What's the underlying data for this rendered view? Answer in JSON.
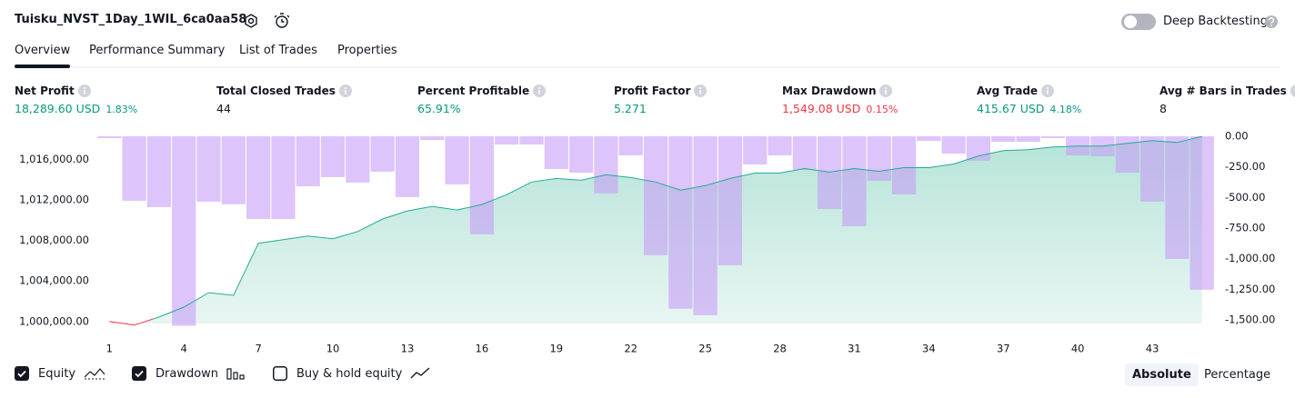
{
  "header": {
    "title": "Tuisku_NVST_1Day_1WIL_6ca0aa58",
    "toggle_label": "Deep Backtesting",
    "toggle_on": false
  },
  "tabs": {
    "items": [
      "Overview",
      "Performance Summary",
      "List of Trades",
      "Properties"
    ],
    "active": 0
  },
  "metrics": [
    {
      "label": "Net Profit",
      "value": "18,289.60 USD",
      "percent": "1.83%",
      "color": "#089981"
    },
    {
      "label": "Total Closed Trades",
      "value": "44",
      "color": "#131722"
    },
    {
      "label": "Percent Profitable",
      "value": "65.91%",
      "color": "#089981"
    },
    {
      "label": "Profit Factor",
      "value": "5.271",
      "color": "#089981"
    },
    {
      "label": "Max Drawdown",
      "value": "1,549.08 USD",
      "percent": "0.15%",
      "color": "#f23645"
    },
    {
      "label": "Avg Trade",
      "value": "415.67 USD",
      "percent": "4.18%",
      "color": "#089981"
    },
    {
      "label": "Avg # Bars in Trades",
      "value": "8",
      "color": "#131722"
    }
  ],
  "chart_data": {
    "type": "combo",
    "x": [
      1,
      2,
      3,
      4,
      5,
      6,
      7,
      8,
      9,
      10,
      11,
      12,
      13,
      14,
      15,
      16,
      17,
      18,
      19,
      20,
      21,
      22,
      23,
      24,
      25,
      26,
      27,
      28,
      29,
      30,
      31,
      32,
      33,
      34,
      35,
      36,
      37,
      38,
      39,
      40,
      41,
      42,
      43,
      44,
      45
    ],
    "xlim": [
      0.55,
      45.45
    ],
    "xticks": [
      1,
      4,
      7,
      10,
      13,
      16,
      19,
      22,
      25,
      28,
      31,
      34,
      37,
      40,
      43
    ],
    "ylim": [
      999800,
      1018300
    ],
    "yticks": [
      {
        "value": 1000000,
        "label": "1,000,000.00"
      },
      {
        "value": 1004000,
        "label": "1,004,000.00"
      },
      {
        "value": 1008000,
        "label": "1,008,000.00"
      },
      {
        "value": 1012000,
        "label": "1,012,000.00"
      },
      {
        "value": 1016000,
        "label": "1,016,000.00"
      }
    ],
    "y2lim": [
      -1530,
      0
    ],
    "y2ticks": [
      {
        "value": 0,
        "label": "0.00"
      },
      {
        "value": -250,
        "label": "-250.00"
      },
      {
        "value": -500,
        "label": "-500.00"
      },
      {
        "value": -750,
        "label": "-750.00"
      },
      {
        "value": -1000,
        "label": "-1,000.00"
      },
      {
        "value": -1250,
        "label": "-1,250.00"
      },
      {
        "value": -1500,
        "label": "-1,500.00"
      }
    ],
    "series": [
      {
        "name": "Equity",
        "type": "area",
        "color": "#22ab94",
        "loss_color": "#f23645",
        "checked": true,
        "values": [
          1000000,
          999640,
          1000440,
          1001420,
          1002840,
          1002580,
          1007730,
          1008090,
          1008440,
          1008180,
          1008890,
          1010130,
          1010930,
          1011380,
          1011020,
          1011560,
          1012530,
          1013780,
          1014130,
          1013960,
          1014490,
          1014220,
          1013780,
          1012980,
          1013420,
          1014130,
          1014670,
          1014670,
          1015110,
          1014760,
          1015110,
          1014840,
          1015200,
          1015200,
          1015560,
          1016360,
          1016890,
          1016980,
          1017240,
          1017330,
          1017330,
          1017600,
          1017870,
          1017690,
          1018289.6
        ]
      },
      {
        "name": "Drawdown",
        "type": "bar",
        "axis": "y2",
        "color": "#c79cf6",
        "checked": true,
        "values": [
          -15,
          -527,
          -579,
          -1549.08,
          -534,
          -556,
          -675,
          -675,
          -408,
          -334,
          -378,
          -289,
          -497,
          -30,
          -393,
          -801,
          -67,
          -67,
          -267,
          -297,
          -467,
          -156,
          -972,
          -1410,
          -1462,
          -1054,
          -230,
          -156,
          -275,
          -594,
          -735,
          -364,
          -475,
          -37,
          -141,
          -200,
          -45,
          -45,
          -15,
          -156,
          -163,
          -297,
          -534,
          -1002,
          -1254
        ]
      }
    ],
    "toggles": [
      {
        "label": "Buy & hold equity",
        "checked": false
      }
    ],
    "scale_modes": [
      "Absolute",
      "Percentage"
    ],
    "scale_mode_active": 0
  }
}
